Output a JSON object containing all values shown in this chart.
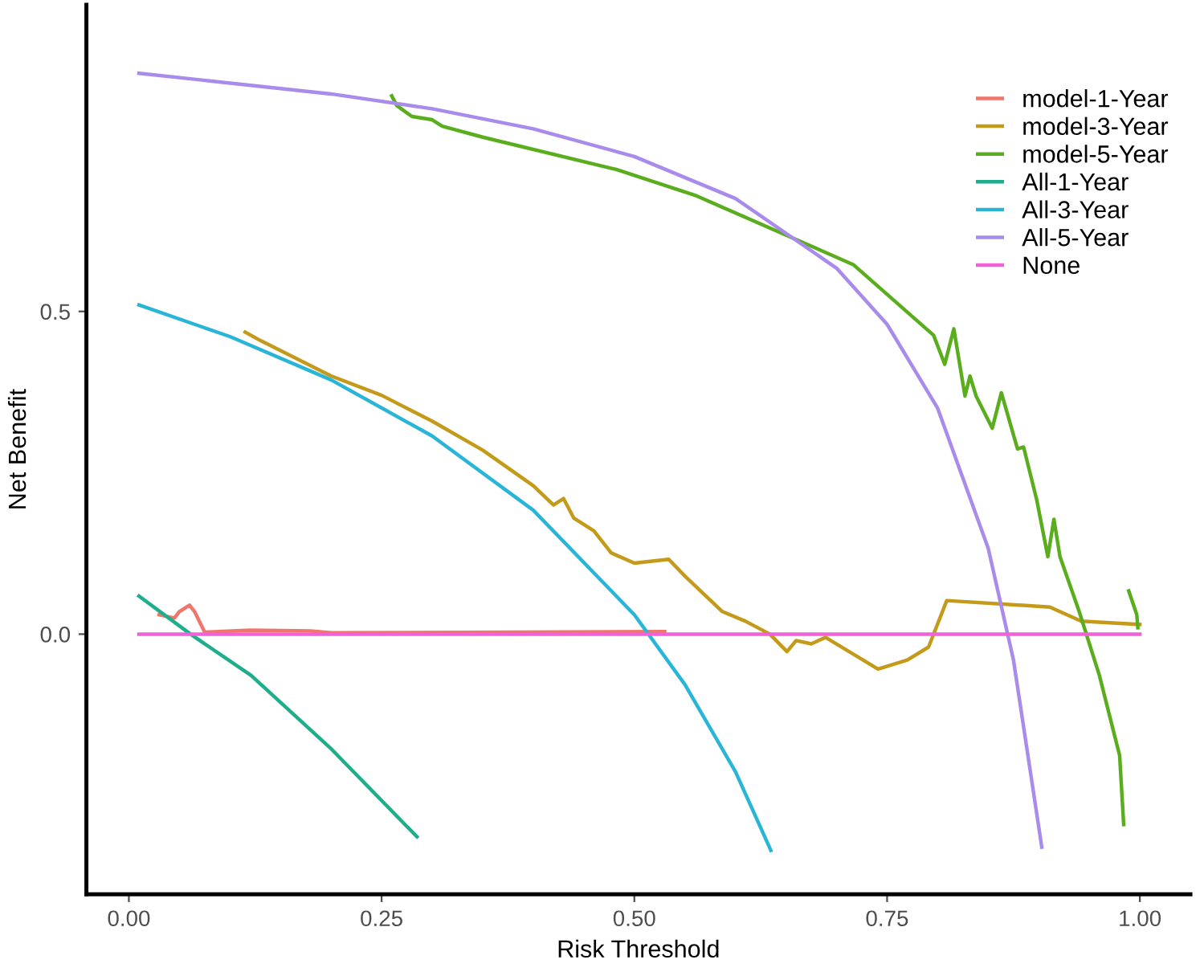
{
  "chart_data": {
    "type": "line",
    "xlabel": "Risk Threshold",
    "ylabel": "Net Benefit",
    "xlim": [
      -0.042,
      1.05
    ],
    "ylim": [
      -0.403,
      0.975
    ],
    "xticks": [
      {
        "value": 0,
        "label": "0.00"
      },
      {
        "value": 0.25,
        "label": "0.25"
      },
      {
        "value": 0.5,
        "label": "0.50"
      },
      {
        "value": 0.75,
        "label": "0.75"
      },
      {
        "value": 1,
        "label": "1.00"
      }
    ],
    "yticks": [
      {
        "value": 0,
        "label": "0.0"
      },
      {
        "value": 0.5,
        "label": "0.5"
      }
    ],
    "grid": false,
    "legend": "top right",
    "series": [
      {
        "name": "model-1-Year",
        "color": "#f0766d",
        "x": [
          0.03,
          0.045,
          0.05,
          0.06,
          0.065,
          0.075,
          0.12,
          0.18,
          0.2,
          0.53
        ],
        "values": [
          0.03,
          0.025,
          0.035,
          0.045,
          0.035,
          0.003,
          0.006,
          0.005,
          0.002,
          0.004
        ]
      },
      {
        "name": "model-3-Year",
        "color": "#c49a1a",
        "x": [
          0.115,
          0.13,
          0.2,
          0.25,
          0.3,
          0.35,
          0.4,
          0.42,
          0.43,
          0.44,
          0.46,
          0.477,
          0.5,
          0.534,
          0.55,
          0.587,
          0.61,
          0.634,
          0.651,
          0.66,
          0.675,
          0.689,
          0.741,
          0.77,
          0.791,
          0.809,
          0.911,
          0.942,
          1.0
        ],
        "values": [
          0.468,
          0.455,
          0.4,
          0.37,
          0.33,
          0.285,
          0.23,
          0.2,
          0.21,
          0.18,
          0.16,
          0.126,
          0.11,
          0.116,
          0.09,
          0.035,
          0.02,
          0,
          -0.027,
          -0.01,
          -0.015,
          -0.005,
          -0.054,
          -0.04,
          -0.02,
          0.052,
          0.042,
          0.02,
          0.015
        ]
      },
      {
        "name": "model-5-Year",
        "color": "#5aae1e",
        "x": [
          0.26,
          0.265,
          0.28,
          0.3,
          0.31,
          0.35,
          0.482,
          0.56,
          0.681,
          0.717,
          0.796,
          0.807,
          0.816,
          0.827,
          0.832,
          0.838,
          0.854,
          0.863,
          0.879,
          0.885,
          0.898,
          0.909,
          0.915,
          0.921,
          0.94,
          0.96,
          0.98,
          0.984,
          0.986,
          0.989,
          0.997,
          0.998
        ],
        "values": [
          0.834,
          0.819,
          0.802,
          0.797,
          0.787,
          0.77,
          0.72,
          0.68,
          0.597,
          0.572,
          0.463,
          0.418,
          0.473,
          0.369,
          0.4,
          0.369,
          0.319,
          0.374,
          0.287,
          0.29,
          0.208,
          0.12,
          0.178,
          0.12,
          0.035,
          -0.064,
          -0.188,
          -0.295,
          null,
          0.067,
          0.03,
          0.01
        ]
      },
      {
        "name": "All-1-Year",
        "color": "#1fae8b",
        "x": [
          0.01,
          0.061,
          0.121,
          0.199,
          0.285
        ],
        "values": [
          0.059,
          0,
          -0.064,
          -0.176,
          -0.314
        ]
      },
      {
        "name": "All-3-Year",
        "color": "#29b5d8",
        "x": [
          0.01,
          0.1,
          0.2,
          0.3,
          0.4,
          0.5,
          0.55,
          0.6,
          0.635
        ],
        "values": [
          0.51,
          0.461,
          0.394,
          0.307,
          0.192,
          0.03,
          -0.078,
          -0.213,
          -0.335
        ]
      },
      {
        "name": "All-5-Year",
        "color": "#a88bea",
        "x": [
          0.01,
          0.2,
          0.3,
          0.4,
          0.5,
          0.6,
          0.7,
          0.75,
          0.8,
          0.85,
          0.875,
          0.903
        ],
        "values": [
          0.869,
          0.837,
          0.814,
          0.783,
          0.74,
          0.675,
          0.567,
          0.48,
          0.35,
          0.133,
          -0.04,
          -0.33
        ]
      },
      {
        "name": "None",
        "color": "#f062d8",
        "x": [
          0.01,
          1.0
        ],
        "values": [
          0,
          0
        ]
      }
    ]
  }
}
